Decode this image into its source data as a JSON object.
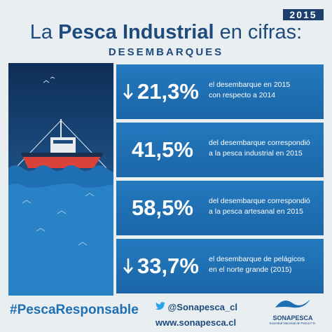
{
  "header": {
    "year": "2015",
    "title_parts": [
      "La",
      "Pesca Industrial",
      "en cifras:"
    ],
    "subtitle": "DESEMBARQUES"
  },
  "stats": [
    {
      "value": "21,3%",
      "lines": [
        "el desembarque en 2015",
        "con respecto a 2014"
      ]
    },
    {
      "value": "41,5%",
      "lines": [
        "del desembarque correspondió",
        "a la pesca industrial en 2015"
      ]
    },
    {
      "value": "58,5%",
      "lines": [
        "del desembarque correspondió",
        "a la pesca artesanal en 2015"
      ]
    },
    {
      "value": "33,7%",
      "lines": [
        "el desembarque de pelágicos",
        "en el norte grande (2015)"
      ]
    }
  ],
  "footer": {
    "hashtag": "#PescaResponsable",
    "twitter": "@Sonapesca_cl",
    "website": "www.sonapesca.cl",
    "logo": "SONAPESCA",
    "logo_sub": "Sociedad Nacional de Pesca F.G."
  }
}
